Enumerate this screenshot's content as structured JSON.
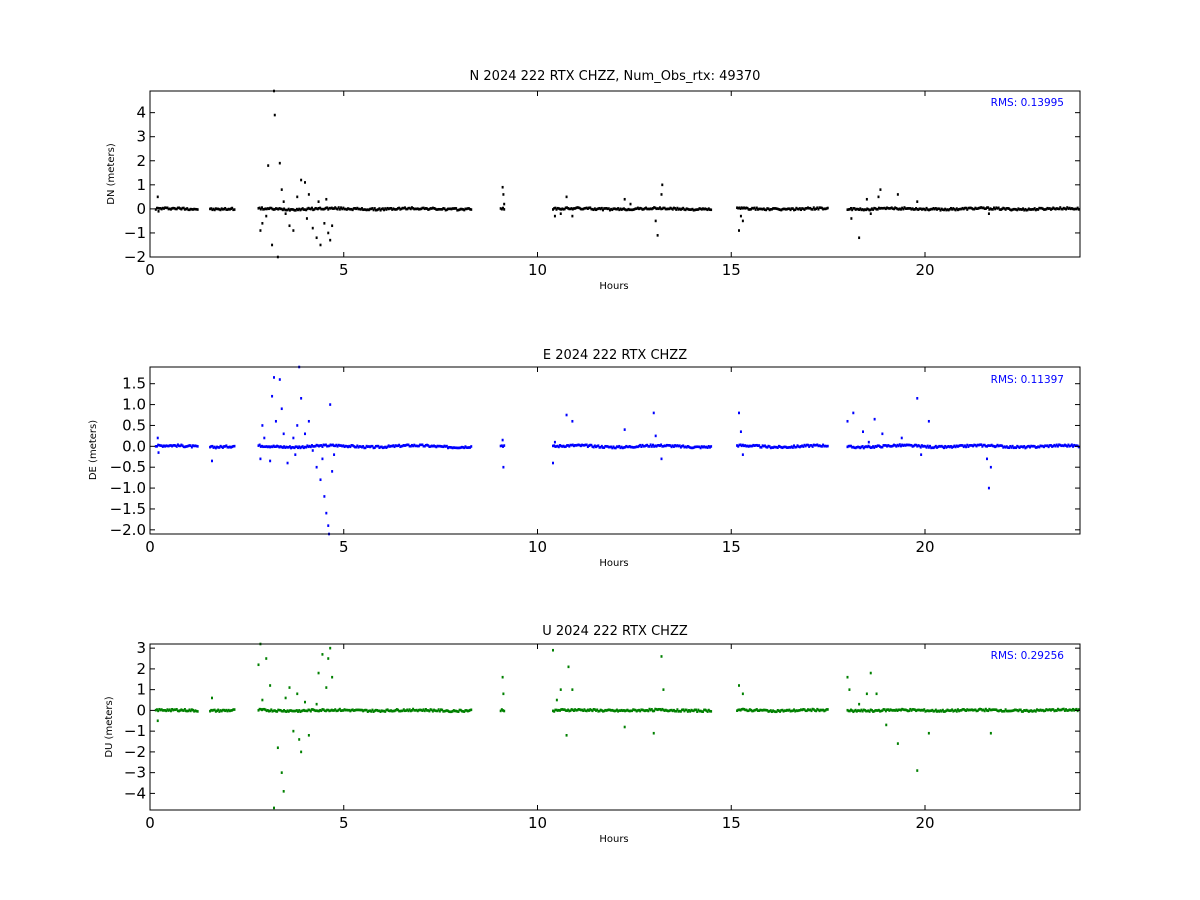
{
  "chart_data": [
    {
      "type": "scatter",
      "title": "N 2024 222 RTX  CHZZ, Num_Obs_rtx: 49370",
      "xlabel": "Hours",
      "ylabel": "DN (meters)",
      "xlim": [
        0,
        24
      ],
      "ylim": [
        -2,
        4.9
      ],
      "xticks": [
        0,
        5,
        10,
        15,
        20
      ],
      "yticks": [
        -2,
        -1,
        0,
        1,
        2,
        3,
        4
      ],
      "color": "#000000",
      "rms_label": "RMS:  0.13995",
      "rms_color": "#0000ff",
      "segments": [
        [
          0.15,
          1.25
        ],
        [
          1.55,
          2.2
        ],
        [
          2.8,
          8.3
        ],
        [
          9.05,
          9.15
        ],
        [
          10.4,
          14.5
        ],
        [
          15.15,
          17.5
        ],
        [
          18.0,
          24.0
        ]
      ],
      "outliers": [
        [
          0.2,
          0.5
        ],
        [
          0.22,
          -0.1
        ],
        [
          2.85,
          -0.9
        ],
        [
          2.9,
          -0.6
        ],
        [
          3.0,
          -0.3
        ],
        [
          3.05,
          1.8
        ],
        [
          3.15,
          -1.5
        ],
        [
          3.2,
          4.9
        ],
        [
          3.22,
          3.9
        ],
        [
          3.3,
          -2.0
        ],
        [
          3.35,
          1.9
        ],
        [
          3.4,
          0.8
        ],
        [
          3.45,
          0.3
        ],
        [
          3.5,
          -0.2
        ],
        [
          3.6,
          -0.7
        ],
        [
          3.7,
          -0.9
        ],
        [
          3.8,
          0.5
        ],
        [
          3.9,
          1.2
        ],
        [
          4.0,
          1.1
        ],
        [
          4.05,
          -0.4
        ],
        [
          4.1,
          0.6
        ],
        [
          4.2,
          -0.8
        ],
        [
          4.3,
          -1.2
        ],
        [
          4.35,
          0.3
        ],
        [
          4.4,
          -1.5
        ],
        [
          4.5,
          -0.6
        ],
        [
          4.55,
          0.4
        ],
        [
          4.6,
          -1.0
        ],
        [
          4.65,
          -1.3
        ],
        [
          4.7,
          -0.7
        ],
        [
          9.1,
          0.9
        ],
        [
          9.12,
          0.6
        ],
        [
          9.14,
          0.2
        ],
        [
          10.45,
          -0.3
        ],
        [
          10.6,
          -0.2
        ],
        [
          10.75,
          0.5
        ],
        [
          10.9,
          -0.3
        ],
        [
          12.25,
          0.4
        ],
        [
          12.4,
          0.2
        ],
        [
          13.05,
          -0.5
        ],
        [
          13.1,
          -1.1
        ],
        [
          13.2,
          0.6
        ],
        [
          13.22,
          1.0
        ],
        [
          15.2,
          -0.9
        ],
        [
          15.25,
          -0.3
        ],
        [
          15.3,
          -0.5
        ],
        [
          18.1,
          -0.4
        ],
        [
          18.3,
          -1.2
        ],
        [
          18.5,
          0.4
        ],
        [
          18.6,
          -0.2
        ],
        [
          18.8,
          0.5
        ],
        [
          18.85,
          0.8
        ],
        [
          19.3,
          0.6
        ],
        [
          19.8,
          0.3
        ],
        [
          21.65,
          -0.2
        ]
      ]
    },
    {
      "type": "scatter",
      "title": "E 2024 222 RTX  CHZZ",
      "xlabel": "Hours",
      "ylabel": "DE (meters)",
      "xlim": [
        0,
        24
      ],
      "ylim": [
        -2.1,
        1.9
      ],
      "xticks": [
        0,
        5,
        10,
        15,
        20
      ],
      "yticks": [
        -2.0,
        -1.5,
        -1.0,
        -0.5,
        0.0,
        0.5,
        1.0,
        1.5
      ],
      "color": "#0000ff",
      "rms_label": "RMS:  0.11397",
      "rms_color": "#0000ff",
      "segments": [
        [
          0.15,
          1.25
        ],
        [
          1.55,
          2.2
        ],
        [
          2.8,
          8.3
        ],
        [
          9.05,
          9.15
        ],
        [
          10.4,
          14.5
        ],
        [
          15.15,
          17.5
        ],
        [
          18.0,
          24.0
        ]
      ],
      "outliers": [
        [
          0.2,
          0.2
        ],
        [
          0.22,
          -0.15
        ],
        [
          1.6,
          -0.35
        ],
        [
          2.85,
          -0.3
        ],
        [
          2.9,
          0.5
        ],
        [
          2.95,
          0.2
        ],
        [
          3.1,
          -0.35
        ],
        [
          3.15,
          1.2
        ],
        [
          3.2,
          1.65
        ],
        [
          3.25,
          0.6
        ],
        [
          3.35,
          1.6
        ],
        [
          3.4,
          0.9
        ],
        [
          3.45,
          0.3
        ],
        [
          3.55,
          -0.4
        ],
        [
          3.7,
          0.2
        ],
        [
          3.75,
          -0.2
        ],
        [
          3.8,
          0.5
        ],
        [
          3.85,
          1.9
        ],
        [
          3.9,
          1.15
        ],
        [
          4.0,
          0.3
        ],
        [
          4.1,
          0.6
        ],
        [
          4.2,
          -0.1
        ],
        [
          4.3,
          -0.5
        ],
        [
          4.4,
          -0.8
        ],
        [
          4.45,
          -0.3
        ],
        [
          4.5,
          -1.2
        ],
        [
          4.55,
          -1.6
        ],
        [
          4.6,
          -1.9
        ],
        [
          4.62,
          -2.1
        ],
        [
          4.65,
          1.0
        ],
        [
          4.7,
          -0.6
        ],
        [
          4.75,
          -0.2
        ],
        [
          9.1,
          0.15
        ],
        [
          9.12,
          -0.5
        ],
        [
          10.4,
          -0.4
        ],
        [
          10.45,
          0.1
        ],
        [
          10.75,
          0.75
        ],
        [
          10.9,
          0.6
        ],
        [
          12.25,
          0.4
        ],
        [
          13.0,
          0.8
        ],
        [
          13.05,
          0.25
        ],
        [
          13.2,
          -0.3
        ],
        [
          15.2,
          0.8
        ],
        [
          15.25,
          0.35
        ],
        [
          15.3,
          -0.2
        ],
        [
          18.0,
          0.6
        ],
        [
          18.15,
          0.8
        ],
        [
          18.4,
          0.35
        ],
        [
          18.55,
          0.1
        ],
        [
          18.7,
          0.65
        ],
        [
          18.9,
          0.3
        ],
        [
          19.4,
          0.2
        ],
        [
          19.8,
          1.15
        ],
        [
          19.9,
          -0.2
        ],
        [
          20.1,
          0.6
        ],
        [
          21.6,
          -0.3
        ],
        [
          21.65,
          -1.0
        ],
        [
          21.7,
          -0.5
        ]
      ]
    },
    {
      "type": "scatter",
      "title": "U 2024 222 RTX  CHZZ",
      "xlabel": "Hours",
      "ylabel": "DU (meters)",
      "xlim": [
        0,
        24
      ],
      "ylim": [
        -4.8,
        3.2
      ],
      "xticks": [
        0,
        5,
        10,
        15,
        20
      ],
      "yticks": [
        -4,
        -3,
        -2,
        -1,
        0,
        1,
        2,
        3
      ],
      "color": "#008000",
      "rms_label": "RMS:  0.29256",
      "rms_color": "#0000ff",
      "segments": [
        [
          0.15,
          1.25
        ],
        [
          1.55,
          2.2
        ],
        [
          2.8,
          8.3
        ],
        [
          9.05,
          9.15
        ],
        [
          10.4,
          14.5
        ],
        [
          15.15,
          17.5
        ],
        [
          18.0,
          24.0
        ]
      ],
      "outliers": [
        [
          0.2,
          -0.5
        ],
        [
          1.6,
          0.6
        ],
        [
          2.8,
          2.2
        ],
        [
          2.85,
          3.2
        ],
        [
          2.9,
          0.5
        ],
        [
          3.0,
          2.5
        ],
        [
          3.1,
          1.2
        ],
        [
          3.2,
          -4.7
        ],
        [
          3.3,
          -1.8
        ],
        [
          3.4,
          -3.0
        ],
        [
          3.45,
          -3.9
        ],
        [
          3.5,
          0.6
        ],
        [
          3.6,
          1.1
        ],
        [
          3.7,
          -1.0
        ],
        [
          3.8,
          0.8
        ],
        [
          3.85,
          -1.4
        ],
        [
          3.9,
          -2.0
        ],
        [
          4.0,
          0.4
        ],
        [
          4.1,
          -1.2
        ],
        [
          4.3,
          0.3
        ],
        [
          4.35,
          1.8
        ],
        [
          4.45,
          2.7
        ],
        [
          4.55,
          1.1
        ],
        [
          4.6,
          2.5
        ],
        [
          4.65,
          3.0
        ],
        [
          4.7,
          1.6
        ],
        [
          9.1,
          1.6
        ],
        [
          9.12,
          0.8
        ],
        [
          10.4,
          2.9
        ],
        [
          10.5,
          0.5
        ],
        [
          10.6,
          1.0
        ],
        [
          10.75,
          -1.2
        ],
        [
          10.8,
          2.1
        ],
        [
          10.9,
          1.0
        ],
        [
          12.25,
          -0.8
        ],
        [
          13.0,
          -1.1
        ],
        [
          13.2,
          2.6
        ],
        [
          13.25,
          1.0
        ],
        [
          15.2,
          1.2
        ],
        [
          15.3,
          0.8
        ],
        [
          18.0,
          1.6
        ],
        [
          18.05,
          1.0
        ],
        [
          18.3,
          0.3
        ],
        [
          18.5,
          0.8
        ],
        [
          18.6,
          1.8
        ],
        [
          18.75,
          0.8
        ],
        [
          19.0,
          -0.7
        ],
        [
          19.3,
          -1.6
        ],
        [
          19.8,
          -2.9
        ],
        [
          20.1,
          -1.1
        ],
        [
          21.7,
          -1.1
        ]
      ]
    }
  ]
}
